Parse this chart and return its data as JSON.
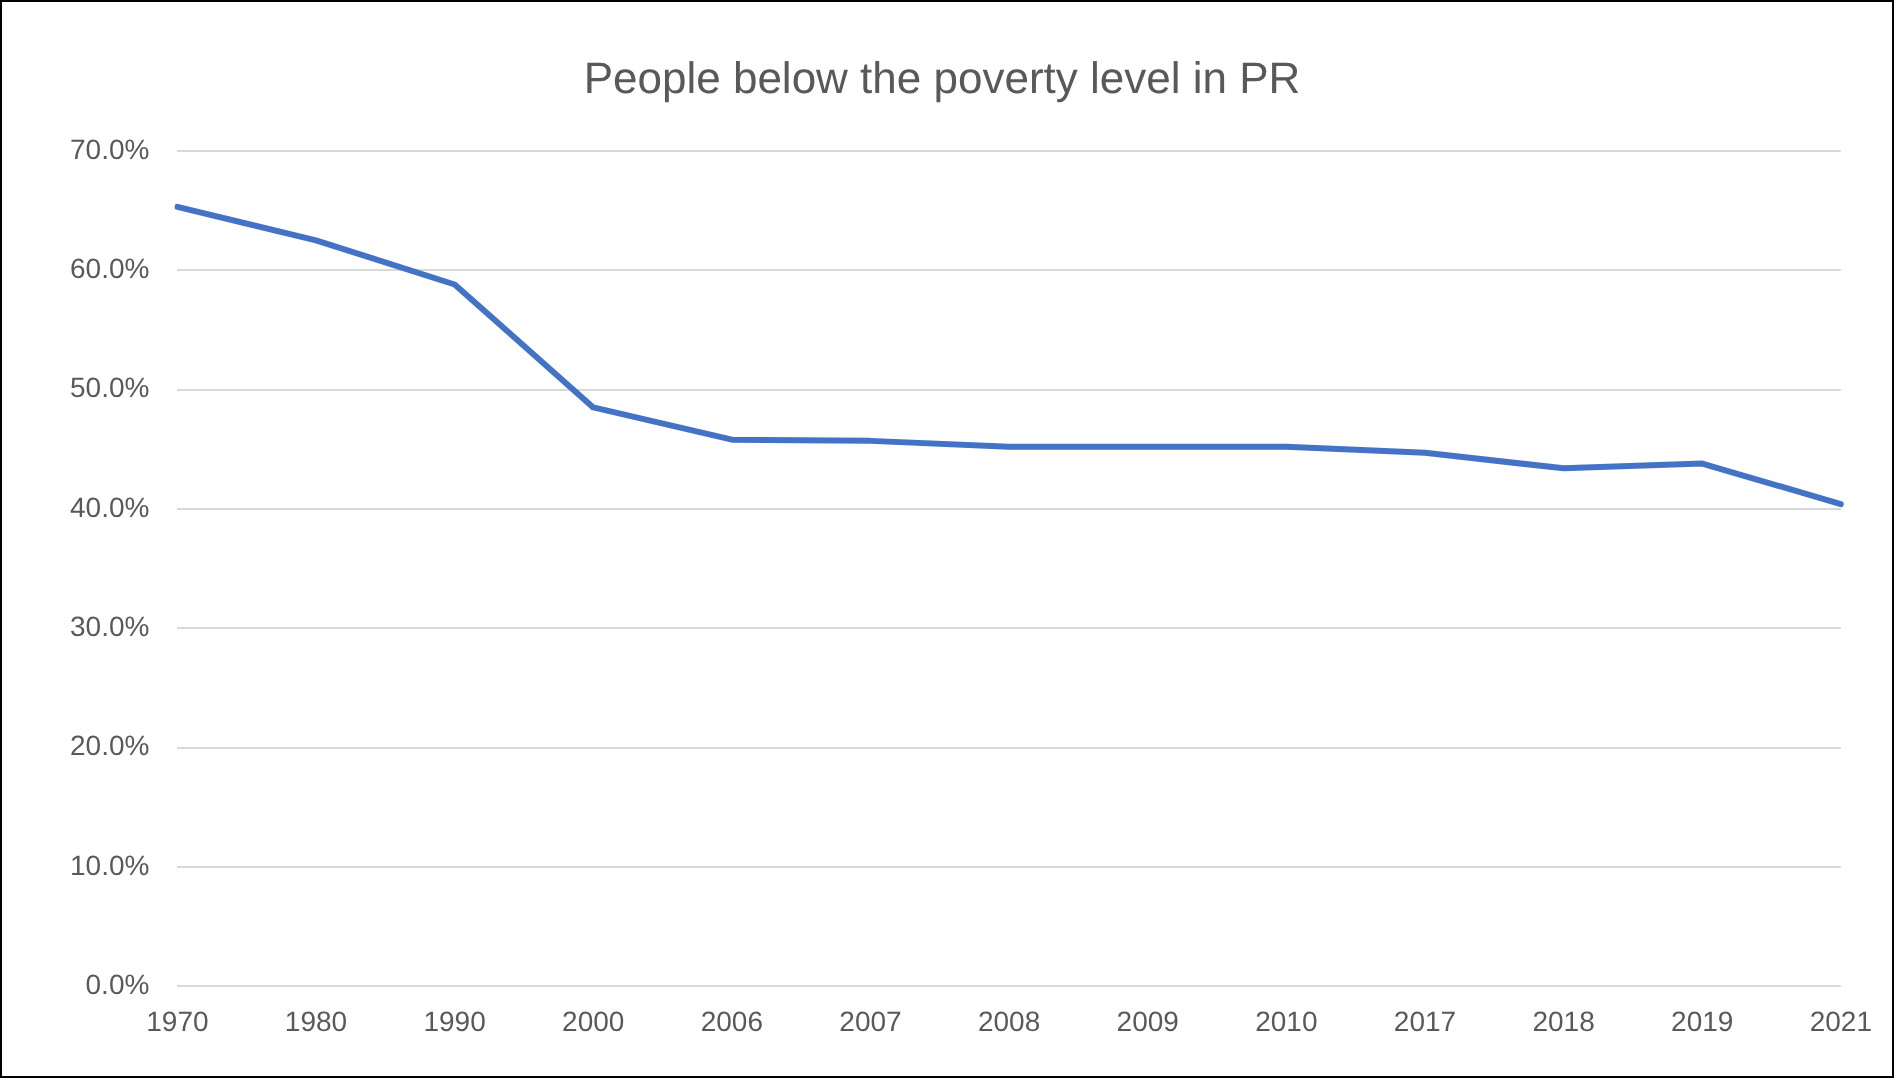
{
  "chart_data": {
    "type": "line",
    "title": "People below the poverty level in PR",
    "categories": [
      "1970",
      "1980",
      "1990",
      "2000",
      "2006",
      "2007",
      "2008",
      "2009",
      "2010",
      "2017",
      "2018",
      "2019",
      "2021"
    ],
    "series": [
      {
        "color": "#4472c4",
        "values": [
          65.3,
          62.5,
          58.8,
          48.5,
          45.8,
          45.7,
          45.2,
          45.2,
          45.2,
          44.7,
          43.4,
          43.8,
          40.4
        ]
      }
    ],
    "ylim": [
      0,
      70
    ],
    "yticks": [
      {
        "value": 0,
        "label": "0.0%"
      },
      {
        "value": 10,
        "label": "10.0%"
      },
      {
        "value": 20,
        "label": "20.0%"
      },
      {
        "value": 30,
        "label": "30.0%"
      },
      {
        "value": 40,
        "label": "40.0%"
      },
      {
        "value": 50,
        "label": "50.0%"
      },
      {
        "value": 60,
        "label": "60.0%"
      },
      {
        "value": 70,
        "label": "70.0%"
      }
    ],
    "grid": "y",
    "marker": "none",
    "line_style": "solid",
    "legend": false
  }
}
